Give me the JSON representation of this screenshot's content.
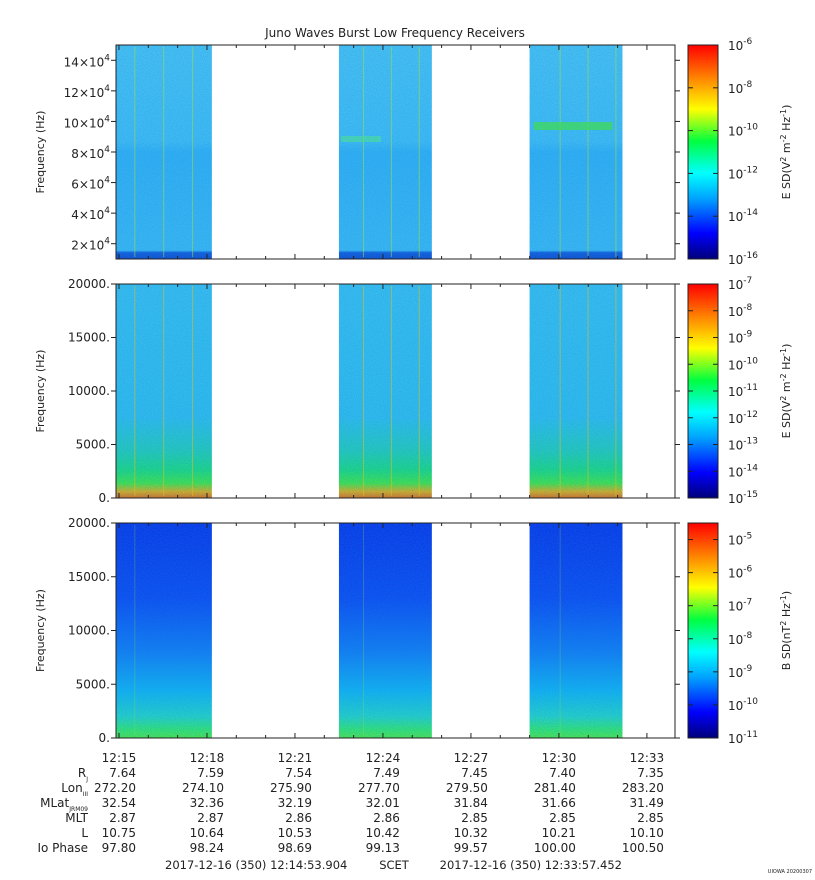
{
  "title": "Juno Waves Burst Low Frequency Receivers",
  "credit": "UIOWA 20200307",
  "time_ticks": [
    "12:15",
    "12:18",
    "12:21",
    "12:24",
    "12:27",
    "12:30",
    "12:33"
  ],
  "time_range": {
    "start": "2017-12-16 (350) 12:14:53.904",
    "middle": "SCET",
    "end": "2017-12-16 (350) 12:33:57.452"
  },
  "chart_data": [
    {
      "type": "heatmap",
      "panel": "E-field high band",
      "ylabel": "Frequency (Hz)",
      "yticks": [
        {
          "value": 20000,
          "mant": "2",
          "exp": "4"
        },
        {
          "value": 40000,
          "mant": "4",
          "exp": "4"
        },
        {
          "value": 60000,
          "mant": "6",
          "exp": "4"
        },
        {
          "value": 80000,
          "mant": "8",
          "exp": "4"
        },
        {
          "value": 100000,
          "mant": "10",
          "exp": "4"
        },
        {
          "value": 120000,
          "mant": "12",
          "exp": "4"
        },
        {
          "value": 140000,
          "mant": "14",
          "exp": "4"
        }
      ],
      "ylim": [
        10000,
        150000
      ],
      "colorbar_label": "E SD (V2 m-2 Hz-1)",
      "colorbar_label_parts": {
        "prefix": "E SD(V",
        "s1": "2",
        "mid": " m",
        "s2": "-2",
        "mid2": " Hz",
        "s3": "-1",
        "suffix": ")"
      },
      "colorbar_ticks": [
        "-6",
        "-8",
        "-10",
        "-12",
        "-14",
        "-16"
      ],
      "colorbar_range": [
        -16,
        -6
      ],
      "data_intervals": [
        [
          "12:14:53",
          "12:18:10"
        ],
        [
          "12:22:30",
          "12:25:40"
        ],
        [
          "12:29:00",
          "12:32:10"
        ]
      ]
    },
    {
      "type": "heatmap",
      "panel": "E-field low band",
      "ylabel": "Frequency (Hz)",
      "yticks": [
        "20000.",
        "15000.",
        "10000.",
        "5000.",
        "0."
      ],
      "ylim": [
        0,
        20000
      ],
      "colorbar_label": "E SD (V2 m-2 Hz-1)",
      "colorbar_label_parts": {
        "prefix": "E SD(V",
        "s1": "2",
        "mid": " m",
        "s2": "-2",
        "mid2": " Hz",
        "s3": "-1",
        "suffix": ")"
      },
      "colorbar_ticks": [
        "-7",
        "-8",
        "-9",
        "-10",
        "-11",
        "-12",
        "-13",
        "-14",
        "-15"
      ],
      "colorbar_range": [
        -15,
        -7
      ],
      "data_intervals": [
        [
          "12:14:53",
          "12:18:10"
        ],
        [
          "12:22:30",
          "12:25:40"
        ],
        [
          "12:29:00",
          "12:32:10"
        ]
      ]
    },
    {
      "type": "heatmap",
      "panel": "B-field",
      "ylabel": "Frequency (Hz)",
      "yticks": [
        "20000.",
        "15000.",
        "10000.",
        "5000.",
        "0."
      ],
      "ylim": [
        0,
        20000
      ],
      "colorbar_label": "B SD (nT2 Hz-1)",
      "colorbar_label_parts": {
        "prefix": "B SD(nT",
        "s1": "2",
        "mid": " Hz",
        "s2": "-1",
        "mid2": "",
        "s3": "",
        "suffix": ")"
      },
      "colorbar_ticks": [
        "-5",
        "-6",
        "-7",
        "-8",
        "-9",
        "-10",
        "-11"
      ],
      "colorbar_range": [
        -11,
        -4.5
      ],
      "data_intervals": [
        [
          "12:14:53",
          "12:18:10"
        ],
        [
          "12:22:30",
          "12:25:40"
        ],
        [
          "12:29:00",
          "12:32:10"
        ]
      ]
    }
  ],
  "ephemeris": {
    "labels": [
      {
        "main": "R",
        "sub": "J"
      },
      {
        "main": "Lon",
        "sub": "III"
      },
      {
        "main": "MLat",
        "sub": "JRM09"
      },
      {
        "main": "MLT",
        "sub": ""
      },
      {
        "main": "L",
        "sub": ""
      },
      {
        "main": "Io Phase",
        "sub": ""
      }
    ],
    "rows": [
      [
        "7.64",
        "7.59",
        "7.54",
        "7.49",
        "7.45",
        "7.40",
        "7.35"
      ],
      [
        "272.20",
        "274.10",
        "275.90",
        "277.70",
        "279.50",
        "281.40",
        "283.20"
      ],
      [
        "32.54",
        "32.36",
        "32.19",
        "32.01",
        "31.84",
        "31.66",
        "31.49"
      ],
      [
        "2.87",
        "2.87",
        "2.86",
        "2.86",
        "2.85",
        "2.85",
        "2.85"
      ],
      [
        "10.75",
        "10.64",
        "10.53",
        "10.42",
        "10.32",
        "10.21",
        "10.10"
      ],
      [
        "97.80",
        "98.24",
        "98.69",
        "99.13",
        "99.57",
        "100.00",
        "100.50"
      ]
    ]
  },
  "colors": {
    "colormap": [
      "#00007a",
      "#0000ff",
      "#00a0ff",
      "#00ffff",
      "#00ff40",
      "#ffff00",
      "#ff8000",
      "#ff0000"
    ]
  }
}
